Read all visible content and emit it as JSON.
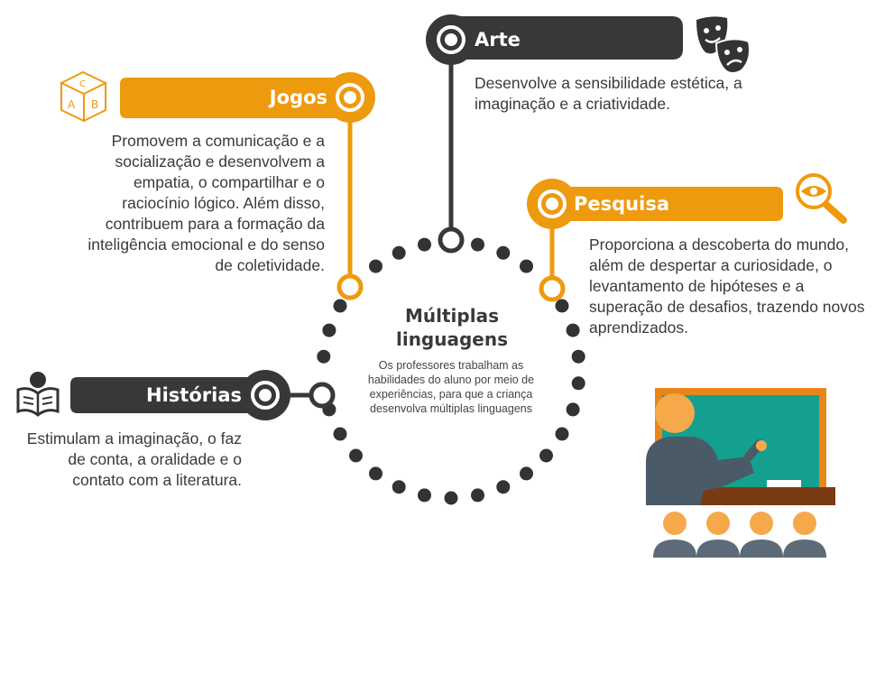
{
  "center": {
    "title_line1": "Múltiplas",
    "title_line2": "linguagens",
    "subtitle": "Os professores trabalham as habilidades do aluno por meio de experiências, para que a criança desenvolva múltiplas linguagens"
  },
  "nodes": {
    "arte": {
      "label": "Arte",
      "icon": "theater-masks-icon",
      "desc": [
        "Desenvolve a sensibilidade estética, a",
        "imaginação e a criatividade."
      ]
    },
    "jogos": {
      "label": "Jogos",
      "icon": "abc-cube-icon",
      "desc": [
        "Promovem a comunicação e a",
        "socialização e desenvolvem a",
        "empatia, o compartilhar e o",
        "raciocínio lógico. Além disso,",
        "contribuem para a formação da",
        "inteligência emocional e do senso",
        "de coletividade."
      ]
    },
    "pesquisa": {
      "label": "Pesquisa",
      "icon": "magnifier-eye-icon",
      "desc": [
        "Proporciona a descoberta do mundo,",
        "além de despertar a curiosidade, o",
        "levantamento de hipóteses e a",
        "superação de desafios, trazendo novos",
        "aprendizados."
      ]
    },
    "historias": {
      "label": "Histórias",
      "icon": "reading-person-icon",
      "desc": [
        "Estimulam a imaginação, o faz",
        "de conta, a oralidade e o",
        "contato com a literatura."
      ]
    }
  },
  "colors": {
    "orange": "#ee9a0e",
    "dark": "#383838",
    "board": "#14a08f",
    "skin": "#f5a94a",
    "slate": "#4b5a67"
  }
}
